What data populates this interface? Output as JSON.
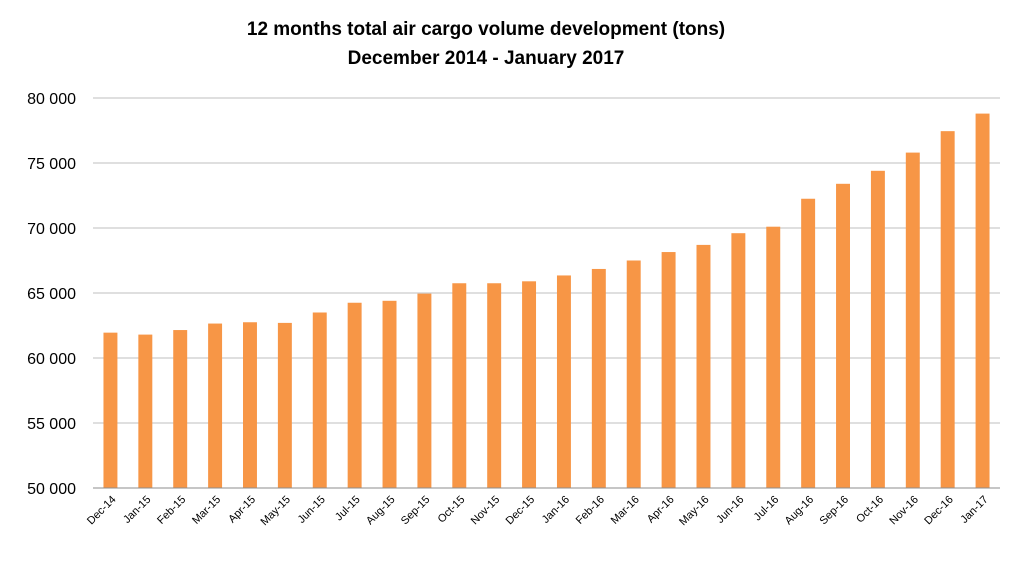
{
  "chart_data": {
    "type": "bar",
    "title": "12 months total air cargo volume development (tons)",
    "subtitle": "December 2014 - January  2017",
    "xlabel": "",
    "ylabel": "",
    "ylim": [
      50000,
      80000
    ],
    "yticks": [
      50000,
      55000,
      60000,
      65000,
      70000,
      75000,
      80000
    ],
    "ytick_labels": [
      "50 000",
      "55 000",
      "60 000",
      "65 000",
      "70 000",
      "75 000",
      "80 000"
    ],
    "grid": true,
    "categories": [
      "Dec-14",
      "Jan-15",
      "Feb-15",
      "Mar-15",
      "Apr-15",
      "May-15",
      "Jun-15",
      "Jul-15",
      "Aug-15",
      "Sep-15",
      "Oct-15",
      "Nov-15",
      "Dec-15",
      "Jan-16",
      "Feb-16",
      "Mar-16",
      "Apr-16",
      "May-16",
      "Jun-16",
      "Jul-16",
      "Aug-16",
      "Sep-16",
      "Oct-16",
      "Nov-16",
      "Dec-16",
      "Jan-17"
    ],
    "values": [
      61950,
      61800,
      62150,
      62650,
      62750,
      62700,
      63500,
      64250,
      64400,
      64950,
      65750,
      65750,
      65900,
      66350,
      66850,
      67500,
      68150,
      68700,
      69600,
      70100,
      72250,
      73400,
      74400,
      75800,
      77450,
      78800
    ],
    "bar_color": "#f79646"
  }
}
